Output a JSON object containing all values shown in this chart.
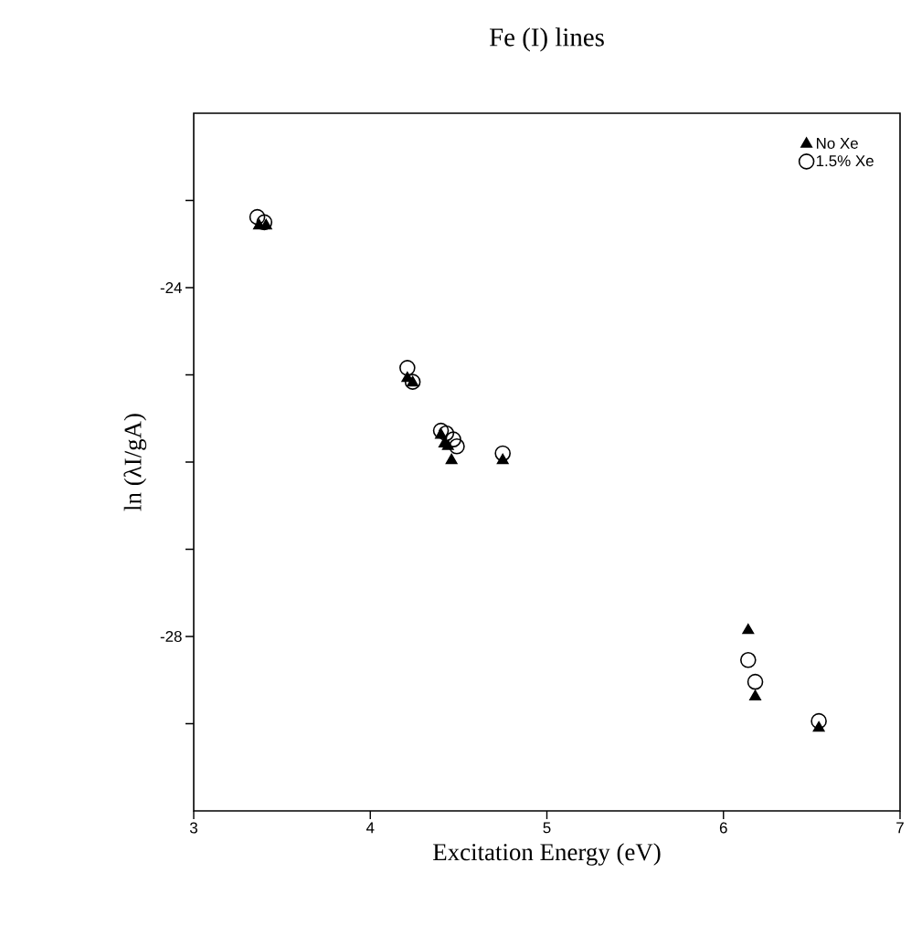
{
  "chart_data": {
    "type": "scatter",
    "title": "Fe (I) lines",
    "xlabel": "Excitation Energy (eV)",
    "ylabel": "ln (λI/gA)",
    "xlim": [
      3,
      7
    ],
    "ylim": [
      -30,
      -22
    ],
    "xticks": [
      3,
      4,
      5,
      6,
      7
    ],
    "yticks": [
      {
        "value": -29,
        "label": null
      },
      -28,
      {
        "value": -27,
        "label": null
      },
      {
        "value": -26,
        "label": null
      },
      {
        "value": -25,
        "label": null
      },
      -24,
      {
        "value": -23,
        "label": null
      }
    ],
    "grid": false,
    "legend": "top right",
    "series": [
      {
        "name": "No Xe",
        "color": "#000000",
        "marker": "triangle",
        "x": [
          3.37,
          3.41,
          4.21,
          4.24,
          4.4,
          4.42,
          4.44,
          4.46,
          4.75,
          6.14,
          6.18,
          6.54
        ],
        "values": [
          -23.29,
          -23.29,
          -25.04,
          -25.09,
          -25.69,
          -25.79,
          -25.82,
          -25.98,
          -25.98,
          -27.93,
          -28.69,
          -29.05
        ]
      },
      {
        "name": "1.5% Xe",
        "color": "#000000",
        "marker": "circle",
        "x": [
          3.36,
          3.4,
          4.21,
          4.24,
          4.4,
          4.43,
          4.47,
          4.49,
          4.75,
          6.14,
          6.18,
          6.54
        ],
        "values": [
          -23.19,
          -23.25,
          -24.92,
          -25.08,
          -25.64,
          -25.67,
          -25.74,
          -25.82,
          -25.9,
          -28.27,
          -28.52,
          -28.97
        ]
      }
    ]
  }
}
